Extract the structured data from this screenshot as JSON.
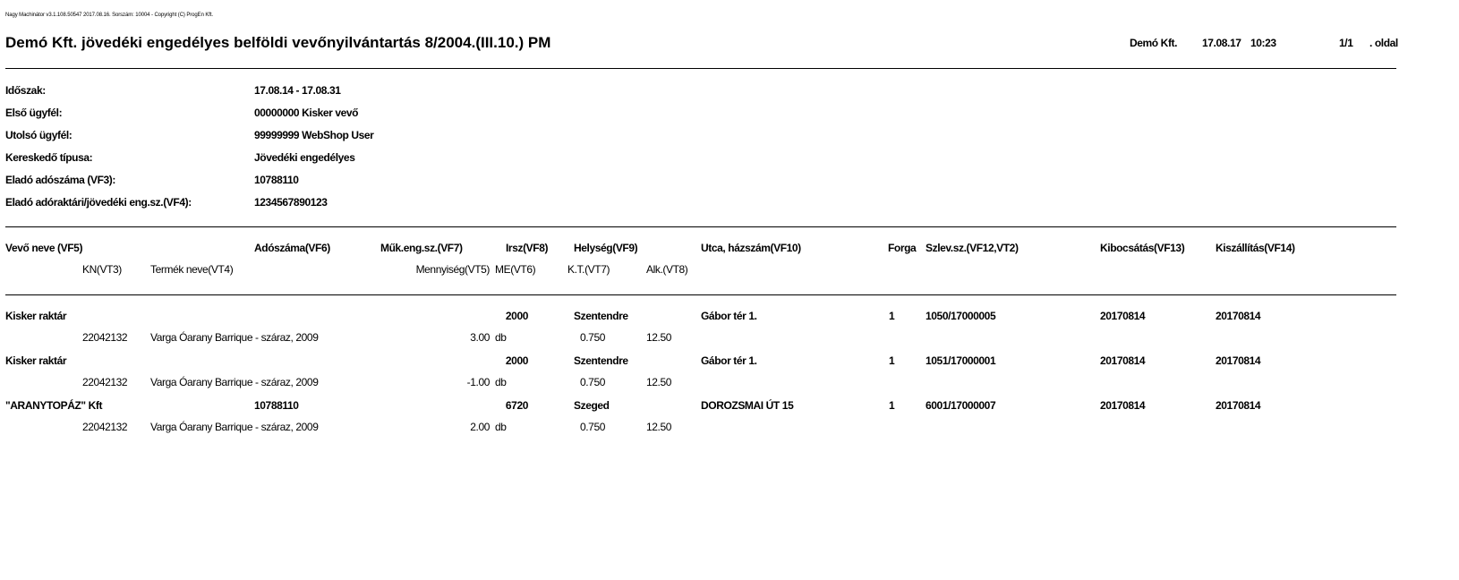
{
  "copyright": "Nagy Machinátor v3.1.108.50547 2017.08.16. Sorszám: 10004 - Copyright (C) ProgEn Kft.",
  "header": {
    "title": "Demó Kft. jövedéki engedélyes belföldi vevőnyilvántartás 8/2004.(III.10.) PM",
    "company": "Demó Kft.",
    "date": "17.08.17",
    "time": "10:23",
    "page": "1/1",
    "page_suffix": ". oldal"
  },
  "params": [
    {
      "label": "Időszak:",
      "value": "17.08.14 - 17.08.31"
    },
    {
      "label": "Első ügyfél:",
      "value": "00000000 Kisker vevő"
    },
    {
      "label": "Utolsó ügyfél:",
      "value": "99999999 WebShop User"
    },
    {
      "label": "Kereskedő típusa:",
      "value": "Jövedéki engedélyes"
    },
    {
      "label": "Eladó adószáma (VF3):",
      "value": "10788110"
    },
    {
      "label": "Eladó adóraktári/jövedéki eng.sz.(VF4):",
      "value": "1234567890123"
    }
  ],
  "columns": {
    "vevo": "Vevő neve (VF5)",
    "adoszam": "Adószáma(VF6)",
    "muk": "Műk.eng.sz.(VF7)",
    "irsz": "Irsz(VF8)",
    "helyseg": "Helység(VF9)",
    "utca": "Utca, házszám(VF10)",
    "forga": "Forga",
    "szlev": "Szlev.sz.(VF12,VT2)",
    "kibocsatas": "Kibocsátás(VF13)",
    "kiszallitas": "Kiszállítás(VF14)",
    "kn": "KN(VT3)",
    "termek": "Termék neve(VT4)",
    "mennyiseg": "Mennyiség(VT5)",
    "me": "ME(VT6)",
    "kt": "K.T.(VT7)",
    "alk": "Alk.(VT8)"
  },
  "records": [
    {
      "vevo": "Kisker raktár",
      "adoszam": "",
      "irsz": "2000",
      "helyseg": "Szentendre",
      "utca": "Gábor tér 1.",
      "forga": "1",
      "szlev": "1050/17000005",
      "kibocsatas": "20170814",
      "kiszallitas": "20170814",
      "kn": "22042132",
      "termek": "Varga Óarany Barrique - száraz, 2009",
      "mennyiseg": "3.00",
      "me": "db",
      "kt": "0.750",
      "alk": "12.50"
    },
    {
      "vevo": "Kisker raktár",
      "adoszam": "",
      "irsz": "2000",
      "helyseg": "Szentendre",
      "utca": "Gábor tér 1.",
      "forga": "1",
      "szlev": "1051/17000001",
      "kibocsatas": "20170814",
      "kiszallitas": "20170814",
      "kn": "22042132",
      "termek": "Varga Óarany Barrique - száraz, 2009",
      "mennyiseg": "-1.00",
      "me": "db",
      "kt": "0.750",
      "alk": "12.50"
    },
    {
      "vevo": "\"ARANYTOPÁZ\" Kft",
      "adoszam": "10788110",
      "irsz": "6720",
      "helyseg": "Szeged",
      "utca": "DOROZSMAI ÚT 15",
      "forga": "1",
      "szlev": "6001/17000007",
      "kibocsatas": "20170814",
      "kiszallitas": "20170814",
      "kn": "22042132",
      "termek": "Varga Óarany Barrique - száraz, 2009",
      "mennyiseg": "2.00",
      "me": "db",
      "kt": "0.750",
      "alk": "12.50"
    }
  ]
}
